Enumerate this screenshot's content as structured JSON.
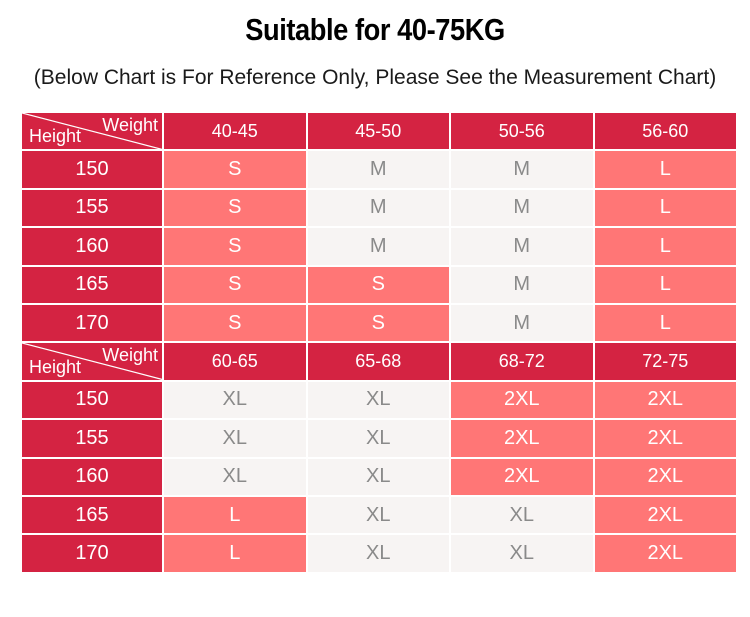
{
  "title": "Suitable for 40-75KG",
  "subtitle": "(Below Chart is For Reference Only, Please See the Measurement Chart)",
  "corner": {
    "weight_label": "Weight",
    "height_label": "Height"
  },
  "colors": {
    "header": "#d42342",
    "size_highlight": "#ff7676",
    "size_plain": "#f7f4f3"
  },
  "blocks": [
    {
      "weights": [
        "40-45",
        "45-50",
        "50-56",
        "56-60"
      ],
      "rows": [
        {
          "height": "150",
          "sizes": [
            "S",
            "M",
            "M",
            "L"
          ],
          "highlight": [
            true,
            false,
            false,
            true
          ]
        },
        {
          "height": "155",
          "sizes": [
            "S",
            "M",
            "M",
            "L"
          ],
          "highlight": [
            true,
            false,
            false,
            true
          ]
        },
        {
          "height": "160",
          "sizes": [
            "S",
            "M",
            "M",
            "L"
          ],
          "highlight": [
            true,
            false,
            false,
            true
          ]
        },
        {
          "height": "165",
          "sizes": [
            "S",
            "S",
            "M",
            "L"
          ],
          "highlight": [
            true,
            true,
            false,
            true
          ]
        },
        {
          "height": "170",
          "sizes": [
            "S",
            "S",
            "M",
            "L"
          ],
          "highlight": [
            true,
            true,
            false,
            true
          ]
        }
      ]
    },
    {
      "weights": [
        "60-65",
        "65-68",
        "68-72",
        "72-75"
      ],
      "rows": [
        {
          "height": "150",
          "sizes": [
            "XL",
            "XL",
            "2XL",
            "2XL"
          ],
          "highlight": [
            false,
            false,
            true,
            true
          ]
        },
        {
          "height": "155",
          "sizes": [
            "XL",
            "XL",
            "2XL",
            "2XL"
          ],
          "highlight": [
            false,
            false,
            true,
            true
          ]
        },
        {
          "height": "160",
          "sizes": [
            "XL",
            "XL",
            "2XL",
            "2XL"
          ],
          "highlight": [
            false,
            false,
            true,
            true
          ]
        },
        {
          "height": "165",
          "sizes": [
            "L",
            "XL",
            "XL",
            "2XL"
          ],
          "highlight": [
            true,
            false,
            false,
            true
          ]
        },
        {
          "height": "170",
          "sizes": [
            "L",
            "XL",
            "XL",
            "2XL"
          ],
          "highlight": [
            true,
            false,
            false,
            true
          ]
        }
      ]
    }
  ]
}
